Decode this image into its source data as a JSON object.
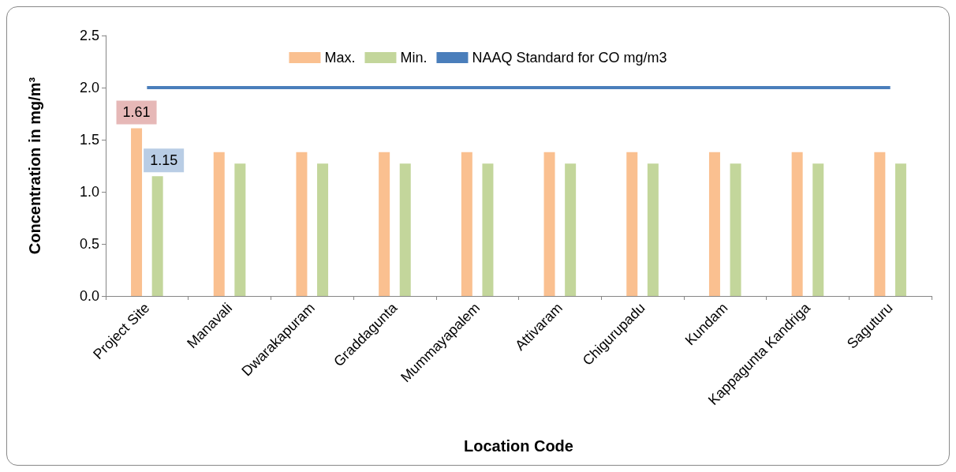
{
  "chart_data": {
    "type": "bar",
    "xlabel": "Location Code",
    "ylabel": "Concentration in mg/m³",
    "categories": [
      "Project Site",
      "Manavali",
      "Dwarakapuram",
      "Graddagunta",
      "Mummayapalem",
      "Attivaram",
      "Chigurupadu",
      "Kundam",
      "Kappagunta Kandriga",
      "Saguturu"
    ],
    "series": [
      {
        "name": "Max.",
        "color": "#fac090",
        "values": [
          1.61,
          1.38,
          1.38,
          1.38,
          1.38,
          1.38,
          1.38,
          1.38,
          1.38,
          1.38
        ],
        "value_labels": [
          "1.61",
          null,
          null,
          null,
          null,
          null,
          null,
          null,
          null,
          null
        ]
      },
      {
        "name": "Min.",
        "color": "#c3d69b",
        "values": [
          1.15,
          1.27,
          1.27,
          1.27,
          1.27,
          1.27,
          1.27,
          1.27,
          1.27,
          1.27
        ],
        "value_labels": [
          "1.15",
          null,
          null,
          null,
          null,
          null,
          null,
          null,
          null,
          null
        ]
      },
      {
        "name": "NAAQ Standard for CO mg/m3",
        "type": "line",
        "color": "#4a7ebb",
        "values": [
          2,
          2,
          2,
          2,
          2,
          2,
          2,
          2,
          2,
          2
        ]
      }
    ],
    "ylim": [
      0,
      2.5
    ],
    "yticks": [
      {
        "value": 0,
        "label": "0.0"
      },
      0.5,
      {
        "value": 1,
        "label": "1.0"
      },
      1.5,
      {
        "value": 2,
        "label": "2.0"
      },
      2.5
    ],
    "grid": false,
    "legend": "top",
    "marker": "none"
  }
}
